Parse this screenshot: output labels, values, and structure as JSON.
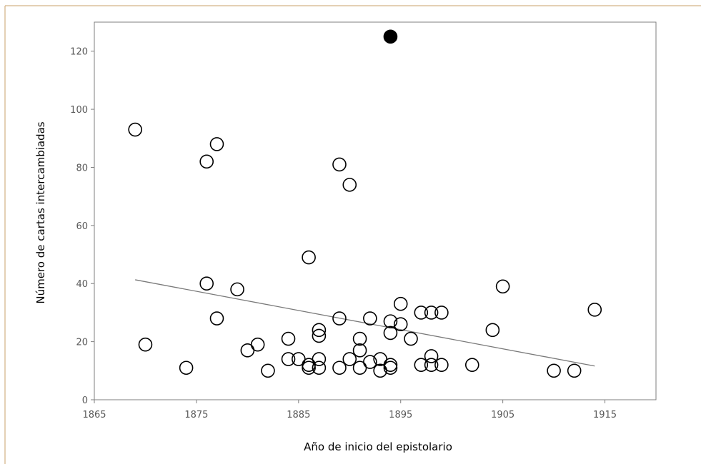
{
  "chart_data": {
    "type": "scatter",
    "title": "",
    "xlabel": "Año de inicio del epistolario",
    "ylabel": "Número de cartas intercambiadas",
    "xlim": [
      1865,
      1920
    ],
    "ylim": [
      0,
      130
    ],
    "x_ticks": [
      "1865",
      "1875",
      "1885",
      "1895",
      "1905",
      "1915"
    ],
    "y_ticks": [
      "0",
      "20",
      "40",
      "60",
      "80",
      "100",
      "120"
    ],
    "grid": false,
    "legend": "none",
    "series": [
      {
        "marker": "open-circle",
        "points": [
          [
            1869,
            93
          ],
          [
            1870,
            19
          ],
          [
            1874,
            11
          ],
          [
            1876,
            82
          ],
          [
            1876,
            40
          ],
          [
            1877,
            88
          ],
          [
            1877,
            28
          ],
          [
            1879,
            38
          ],
          [
            1880,
            17
          ],
          [
            1881,
            19
          ],
          [
            1882,
            10
          ],
          [
            1884,
            21
          ],
          [
            1884,
            14
          ],
          [
            1885,
            14
          ],
          [
            1886,
            49
          ],
          [
            1886,
            12
          ],
          [
            1886,
            11
          ],
          [
            1887,
            24
          ],
          [
            1887,
            22
          ],
          [
            1887,
            14
          ],
          [
            1887,
            11
          ],
          [
            1889,
            81
          ],
          [
            1889,
            28
          ],
          [
            1889,
            11
          ],
          [
            1890,
            74
          ],
          [
            1890,
            14
          ],
          [
            1891,
            21
          ],
          [
            1891,
            17
          ],
          [
            1891,
            11
          ],
          [
            1892,
            28
          ],
          [
            1892,
            13
          ],
          [
            1893,
            14
          ],
          [
            1893,
            10
          ],
          [
            1894,
            27
          ],
          [
            1894,
            23
          ],
          [
            1894,
            12
          ],
          [
            1894,
            11
          ],
          [
            1895,
            33
          ],
          [
            1895,
            26
          ],
          [
            1896,
            21
          ],
          [
            1897,
            30
          ],
          [
            1897,
            12
          ],
          [
            1898,
            30
          ],
          [
            1898,
            15
          ],
          [
            1898,
            12
          ],
          [
            1899,
            30
          ],
          [
            1899,
            12
          ],
          [
            1902,
            12
          ],
          [
            1904,
            24
          ],
          [
            1905,
            39
          ],
          [
            1910,
            10
          ],
          [
            1912,
            10
          ],
          [
            1914,
            31
          ]
        ]
      },
      {
        "marker": "filled-circle",
        "points": [
          [
            1894,
            125
          ]
        ]
      }
    ],
    "trendline": {
      "type": "linear",
      "from": [
        1869,
        41.3
      ],
      "to": [
        1914,
        11.6
      ]
    }
  }
}
